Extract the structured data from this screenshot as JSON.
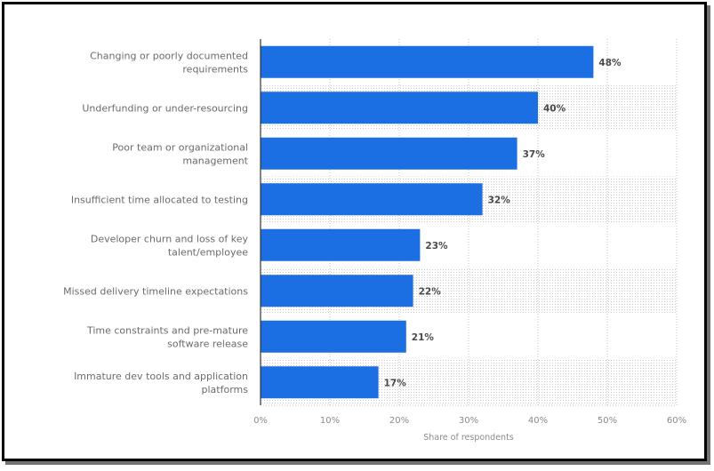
{
  "chart_data": {
    "type": "bar",
    "orientation": "horizontal",
    "title": "",
    "xlabel": "Share of respondents",
    "ylabel": "",
    "xlim": [
      0,
      60
    ],
    "x_ticks": [
      "0%",
      "10%",
      "20%",
      "30%",
      "40%",
      "50%",
      "60%"
    ],
    "x_tick_values": [
      0,
      10,
      20,
      30,
      40,
      50,
      60
    ],
    "grid": true,
    "legend": "none",
    "bar_color": "#1c6fe3",
    "band_color": "#ececec",
    "categories": [
      [
        "Changing or poorly documented",
        "requirements"
      ],
      [
        "Underfunding or under-resourcing"
      ],
      [
        "Poor team or organizational",
        "management"
      ],
      [
        "Insufficient time allocated to testing"
      ],
      [
        "Developer churn and loss of key",
        "talent/employee"
      ],
      [
        "Missed delivery timeline expectations"
      ],
      [
        "Time constraints and pre-mature",
        "software release"
      ],
      [
        "Immature dev tools and application",
        "platforms"
      ]
    ],
    "values": [
      48,
      40,
      37,
      32,
      23,
      22,
      21,
      17
    ],
    "value_labels": [
      "48%",
      "40%",
      "37%",
      "32%",
      "23%",
      "22%",
      "21%",
      "17%"
    ]
  }
}
